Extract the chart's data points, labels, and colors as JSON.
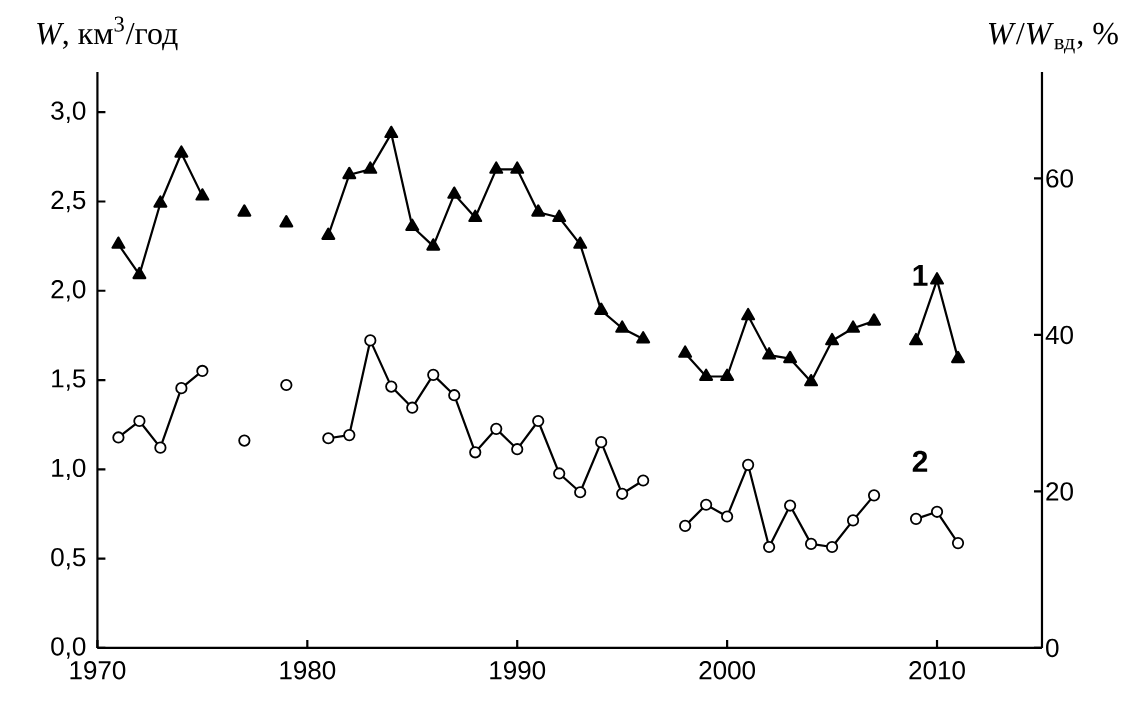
{
  "chart_data": {
    "type": "line",
    "ylabel": "*W*, км$^{3}$/год",
    "y2label": "*W*/*W*$_{вд}$, %",
    "x": [
      1971,
      1972,
      1973,
      1974,
      1975,
      1976,
      1977,
      1978,
      1979,
      1980,
      1981,
      1982,
      1983,
      1984,
      1985,
      1986,
      1987,
      1988,
      1989,
      1990,
      1991,
      1992,
      1993,
      1994,
      1995,
      1996,
      1997,
      1998,
      1999,
      2000,
      2001,
      2002,
      2003,
      2004,
      2005,
      2006,
      2007,
      2008,
      2009,
      2010,
      2011
    ],
    "series": [
      {
        "name": "1",
        "color": "#000000",
        "marker": "triangle",
        "line_style": "solid",
        "values": [
          2.26,
          2.09,
          2.49,
          2.77,
          2.53,
          null,
          2.44,
          null,
          2.38,
          null,
          2.31,
          2.65,
          2.68,
          2.88,
          2.36,
          2.25,
          2.54,
          2.41,
          2.68,
          2.68,
          2.44,
          2.41,
          2.26,
          1.89,
          1.79,
          1.73,
          null,
          1.65,
          1.52,
          1.52,
          1.86,
          1.64,
          1.62,
          1.49,
          1.72,
          1.79,
          1.83,
          null,
          1.72,
          2.06,
          1.62
        ]
      },
      {
        "name": "2",
        "color": "#000000",
        "marker": "circle",
        "line_style": "solid",
        "axis": "y2",
        "values": [
          26.9,
          29.0,
          25.6,
          33.2,
          35.4,
          null,
          26.5,
          null,
          33.6,
          null,
          26.8,
          27.2,
          39.3,
          33.4,
          30.7,
          34.9,
          32.3,
          25.0,
          28.0,
          25.4,
          29.0,
          22.3,
          19.9,
          26.3,
          19.7,
          21.4,
          null,
          15.6,
          18.3,
          16.8,
          23.4,
          12.9,
          18.2,
          13.3,
          12.9,
          16.3,
          19.5,
          null,
          16.5,
          17.4,
          13.4
        ]
      }
    ],
    "xlim": [
      1970,
      2015
    ],
    "xticks": [
      1970,
      1980,
      1990,
      2000,
      2010
    ],
    "ylim": [
      0,
      3.225
    ],
    "yticks": [
      {
        "value": 0,
        "label": "0,0"
      },
      {
        "value": 0.5,
        "label": "0,5"
      },
      {
        "value": 1.0,
        "label": "1,0"
      },
      {
        "value": 1.5,
        "label": "1,5"
      },
      {
        "value": 2.0,
        "label": "2,0"
      },
      {
        "value": 2.5,
        "label": "2,5"
      },
      {
        "value": 3.0,
        "label": "3,0"
      }
    ],
    "y2lim": [
      0,
      73.6
    ],
    "y2ticks": [
      0,
      20,
      40,
      60
    ],
    "grid": false
  }
}
